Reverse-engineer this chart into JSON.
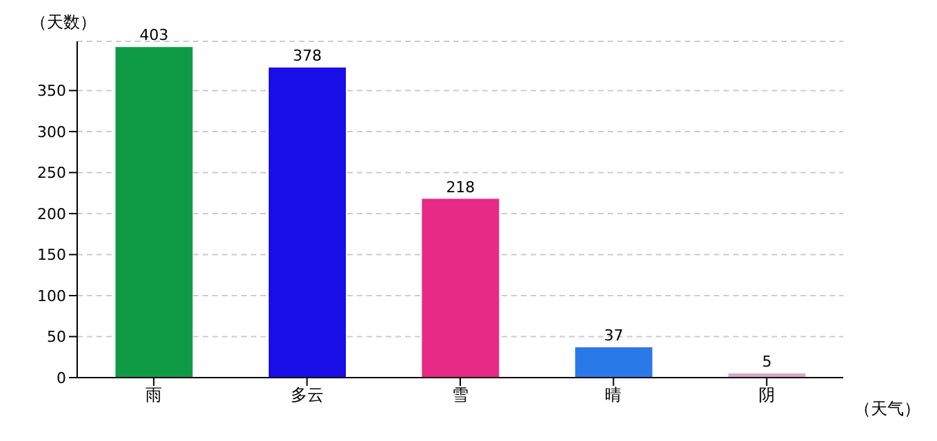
{
  "chart_data": {
    "type": "bar",
    "categories": [
      "雨",
      "多云",
      "雪",
      "晴",
      "阴"
    ],
    "values": [
      403,
      378,
      218,
      37,
      5
    ],
    "colors": [
      "#0f9b46",
      "#1a0ee8",
      "#e62a86",
      "#2a79e8",
      "#d9a5d2"
    ],
    "ylabel": "（天数）",
    "xlabel": "（天气）",
    "ylim": [
      0,
      410
    ],
    "yticks": [
      0,
      50,
      100,
      150,
      200,
      250,
      300,
      350
    ],
    "grid": "y",
    "data_labels": true
  }
}
